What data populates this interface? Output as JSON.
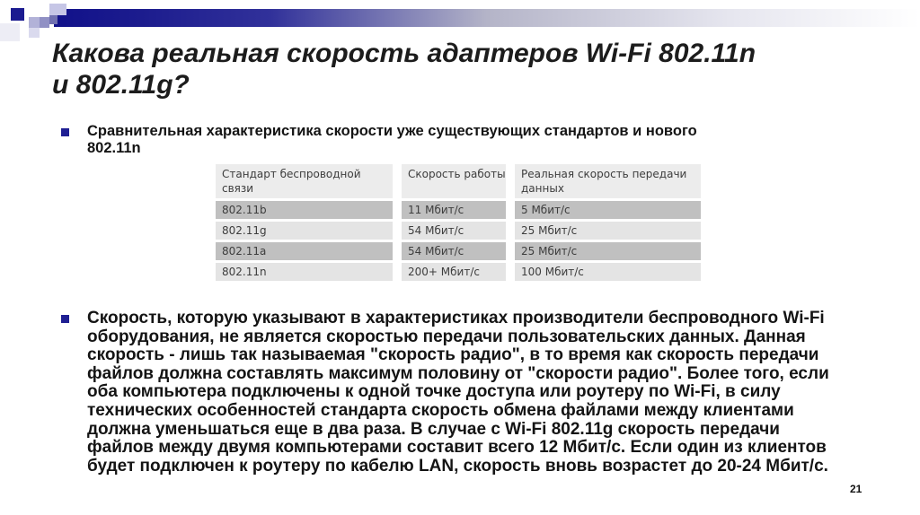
{
  "page": {
    "number": "21"
  },
  "title": {
    "text": "Какова реальная скорость адаптеров Wi-Fi 802.11n\nи 802.11g?"
  },
  "bullets": [
    {
      "text": "Сравнительная характеристика скорости уже существующих стандартов и нового\n802.11n"
    },
    {
      "text": "Скорость, которую указывают в характеристиках производители беспроводного Wi-Fi\nоборудования, не является скоростью передачи пользовательских данных. Данная\nскорость - лишь так называемая \"скорость радио\", в то время как скорость передачи\nфайлов должна составлять максимум половину от \"скорости радио\". Более того, если\nоба компьютера подключены к одной точке доступа или роутеру по Wi-Fi, в силу\nтехнических особенностей стандарта скорость обмена файлами между клиентами\nдолжна уменьшаться еще в два раза. В случае с Wi-Fi 802.11g скорость передачи\nфайлов между двумя компьютерами составит всего 12 Мбит/с. Если один из клиентов\nбудет подключен к роутеру по кабелю LAN, скорость вновь возрастет до 20-24 Мбит/с."
    }
  ],
  "table": {
    "headers": [
      "Стандарт беспроводной связи",
      "Скорость работы",
      "Реальная скорость передачи данных"
    ],
    "rows": [
      [
        "802.11b",
        "11 Мбит/с",
        "5 Мбит/с"
      ],
      [
        "802.11g",
        "54 Мбит/с",
        "25 Мбит/с"
      ],
      [
        "802.11a",
        "54 Мбит/с",
        "25 Мбит/с"
      ],
      [
        "802.11n",
        "200+ Мбит/с",
        "100 Мбит/с"
      ]
    ]
  },
  "colors": {
    "accent-navy": "#16168c",
    "bullet-navy": "#1f1f93",
    "row-dark": "#c0c0c0",
    "row-light": "#e4e4e4",
    "header-bg": "#ececec",
    "title-text": "#1c1c1c",
    "body-text": "#141414",
    "table-text": "#3d3d3d"
  }
}
